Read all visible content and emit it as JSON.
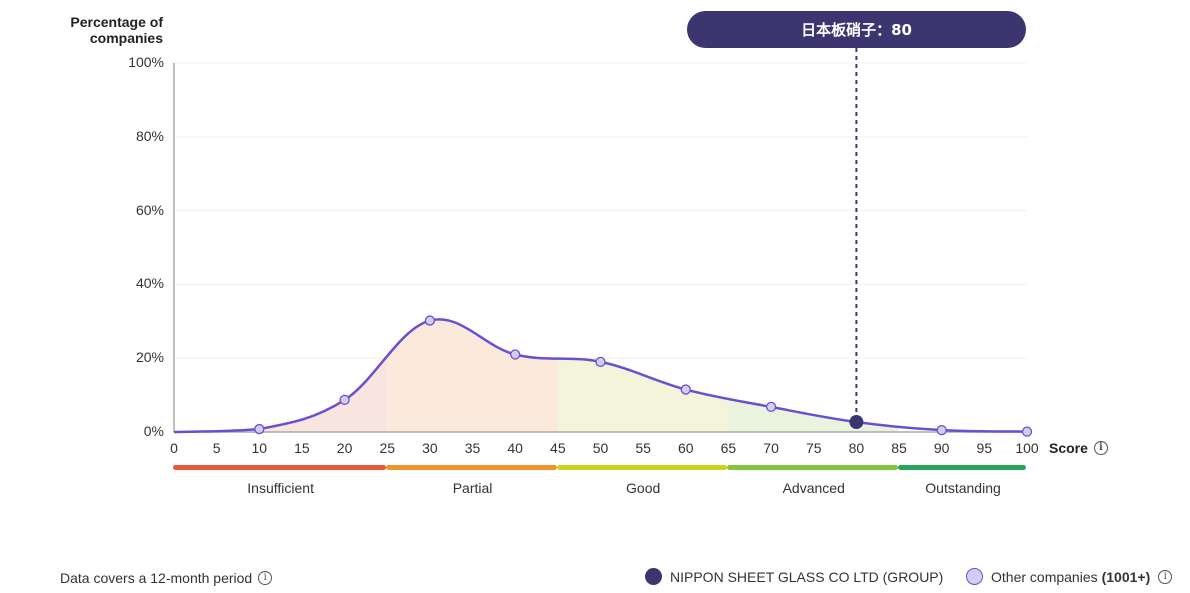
{
  "chart_data": {
    "type": "area",
    "title": "",
    "xlabel": "Score",
    "ylabel": "Percentage of companies",
    "x": [
      0,
      10,
      20,
      30,
      40,
      50,
      60,
      70,
      80,
      90,
      100
    ],
    "series": [
      {
        "name": "Other companies (1001+)",
        "values": [
          0,
          0.8,
          8.7,
          30.2,
          21.0,
          19.0,
          11.5,
          6.8,
          2.7,
          0.5,
          0.1
        ]
      }
    ],
    "highlight": {
      "name": "NIPPON SHEET GLASS CO LTD (GROUP)",
      "label": "日本板硝子",
      "x": 80,
      "y": 2.7
    },
    "xlim": [
      0,
      100
    ],
    "ylim": [
      0,
      100
    ],
    "x_ticks": [
      "0",
      "5",
      "10",
      "15",
      "20",
      "25",
      "30",
      "35",
      "40",
      "45",
      "50",
      "55",
      "60",
      "65",
      "70",
      "75",
      "80",
      "85",
      "90",
      "95",
      "100"
    ],
    "y_ticks": [
      "0%",
      "20%",
      "40%",
      "60%",
      "80%",
      "100%"
    ],
    "bands": [
      {
        "label": "Insufficient",
        "from": 0,
        "to": 25,
        "color": "#e8583a",
        "fill": "#f9e5e0"
      },
      {
        "label": "Partial",
        "from": 25,
        "to": 45,
        "color": "#f0922e",
        "fill": "#fbeadb"
      },
      {
        "label": "Good",
        "from": 45,
        "to": 65,
        "color": "#c9d41f",
        "fill": "#f3f5db"
      },
      {
        "label": "Advanced",
        "from": 65,
        "to": 85,
        "color": "#86c440",
        "fill": "#e9f3de"
      },
      {
        "label": "Outstanding",
        "from": 85,
        "to": 100,
        "color": "#26a65b",
        "fill": "#ffffff"
      }
    ],
    "grid": true,
    "legend_position": "bottom-right"
  },
  "axis": {
    "y_title": "Percentage of companies",
    "x_title": "Score"
  },
  "tooltip": {
    "text": "日本板硝子：80"
  },
  "footer": {
    "period_note": "Data covers a 12-month period",
    "legend_company": "NIPPON SHEET GLASS CO LTD (GROUP)",
    "legend_others": "Other companies",
    "legend_others_count": "(1001+)"
  },
  "colors": {
    "line": "#6a4fd0",
    "marker_fill": "#d3cdf4",
    "highlight": "#3d3570",
    "tooltip_bg": "#3d3570"
  }
}
